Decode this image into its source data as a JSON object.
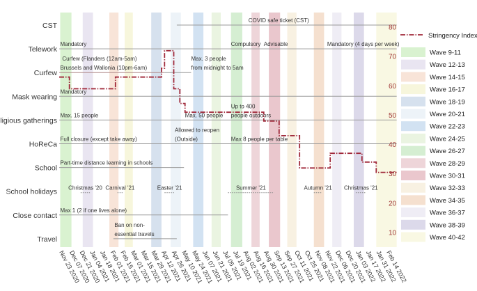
{
  "chart_data": {
    "type": "line",
    "title": "",
    "x_ticks": [
      "Nov 23 2020",
      "Dec 07 2020",
      "Dec 21 2020",
      "Jan 04 2021",
      "Jan 18 2021",
      "Feb 01 2021",
      "Feb 15 2021",
      "Mar 01 2021",
      "Mar 15 2021",
      "Mar 29 2021",
      "Apr 12 2021",
      "Apr 26 2021",
      "May 10 2021",
      "May 24 2021",
      "Jun 07 2021",
      "Jun 21 2021",
      "Jul 05 2021",
      "Jul 19 2021",
      "Aug 02 2021",
      "Aug 16 2021",
      "Aug 30 2021",
      "Sep 13 2021",
      "Sep 27 2021",
      "Oct 11 2021",
      "Oct 25 2021",
      "Nov 08 2021",
      "Nov 22 2021",
      "Dec 06 2021",
      "Dec 20 2021",
      "Jan 03 2022",
      "Jan 17 2022",
      "Jan 31 2022",
      "Feb 14 2022"
    ],
    "categories": [
      "CST",
      "Telework",
      "Curfew",
      "Mask wearing",
      "Religious gatherings",
      "HoReCa",
      "School",
      "School holidays",
      "Close contact",
      "Travel"
    ],
    "y_right": {
      "label": "",
      "ylim": [
        5,
        85
      ],
      "ticks": [
        10,
        20,
        30,
        40,
        50,
        60,
        70,
        80
      ]
    },
    "series": [
      {
        "name": "Stringency Index",
        "color": "#a0293a",
        "points": [
          [
            0,
            63
          ],
          [
            1,
            63
          ],
          [
            1,
            59
          ],
          [
            5.5,
            59
          ],
          [
            5.5,
            63
          ],
          [
            10,
            63
          ],
          [
            10,
            66
          ],
          [
            10.3,
            66
          ],
          [
            10.3,
            72
          ],
          [
            11.2,
            72
          ],
          [
            11.2,
            59
          ],
          [
            11.8,
            59
          ],
          [
            11.8,
            54
          ],
          [
            12.3,
            54
          ],
          [
            12.3,
            51
          ],
          [
            20,
            51
          ],
          [
            20,
            48
          ],
          [
            21.5,
            48
          ],
          [
            21.5,
            43
          ],
          [
            23.5,
            43
          ],
          [
            23.5,
            32
          ],
          [
            26.5,
            32
          ],
          [
            26.5,
            37
          ],
          [
            29.6,
            37
          ],
          [
            29.6,
            34
          ],
          [
            31,
            34
          ],
          [
            31,
            30.5
          ],
          [
            33,
            30.5
          ]
        ]
      }
    ],
    "waves": [
      {
        "label": "Wave 9-11",
        "start": 0.1,
        "end": 1.2,
        "color": "#d9f2d0"
      },
      {
        "label": "Wave 12-13",
        "start": 2.3,
        "end": 3.3,
        "color": "#e9e5f1"
      },
      {
        "label": "Wave 14-15",
        "start": 4.9,
        "end": 5.8,
        "color": "#f8e4d8"
      },
      {
        "label": "Wave 16-17",
        "start": 6.4,
        "end": 7.2,
        "color": "#f7f6dc"
      },
      {
        "label": "Wave 18-19",
        "start": 9.0,
        "end": 10.0,
        "color": "#d6e1ee"
      },
      {
        "label": "Wave 20-21",
        "start": 10.9,
        "end": 11.9,
        "color": "#edf3f8"
      },
      {
        "label": "Wave 22-23",
        "start": 13.1,
        "end": 14.1,
        "color": "#d2e2f2"
      },
      {
        "label": "Wave 24-25",
        "start": 14.9,
        "end": 15.8,
        "color": "#eaf4e1"
      },
      {
        "label": "Wave 26-27",
        "start": 16.8,
        "end": 17.9,
        "color": "#d5eed2"
      },
      {
        "label": "Wave 28-29",
        "start": 18.8,
        "end": 19.6,
        "color": "#eed5d9"
      },
      {
        "label": "Wave 30-31",
        "start": 20.5,
        "end": 21.6,
        "color": "#eac7cd"
      },
      {
        "label": "Wave 32-33",
        "start": 22.3,
        "end": 23.2,
        "color": "#f8f1e2"
      },
      {
        "label": "Wave 34-35",
        "start": 24.9,
        "end": 25.9,
        "color": "#f5e0cf"
      },
      {
        "label": "Wave 36-37",
        "start": 26.7,
        "end": 27.6,
        "color": "#efedf5"
      },
      {
        "label": "Wave 38-39",
        "start": 28.8,
        "end": 29.8,
        "color": "#dcd9ea"
      },
      {
        "label": "Wave 40-42",
        "start": 31.0,
        "end": 33.0,
        "color": "#f9f8e3"
      }
    ],
    "measures": [
      {
        "row": "CST",
        "start": 11.5,
        "end": 33,
        "color": "#999999"
      },
      {
        "row": "Telework",
        "start": 0,
        "end": 33,
        "color": "#999999"
      },
      {
        "row": "Curfew",
        "start": 0,
        "end": 10.3,
        "color": "#b08a8a"
      },
      {
        "row": "Curfew",
        "start": 10.3,
        "end": 12.9,
        "color": "#999999"
      },
      {
        "row": "Mask wearing",
        "start": 0,
        "end": 33,
        "color": "#999999"
      },
      {
        "row": "Religious gatherings",
        "start": 0,
        "end": 33,
        "color": "#999999"
      },
      {
        "row": "HoReCa",
        "start": 0,
        "end": 33,
        "color": "#999999"
      },
      {
        "row": "School",
        "start": 0,
        "end": 12.2,
        "color": "#999999"
      },
      {
        "row": "Close contact",
        "start": 0,
        "end": 16.5,
        "color": "#999999"
      },
      {
        "row": "Travel",
        "start": 5.3,
        "end": 11.5,
        "color": "#999999"
      }
    ],
    "holidays": [
      {
        "label": "Christmas '20",
        "start": 2.1,
        "end": 3.0
      },
      {
        "label": "Carnival '21",
        "start": 5.7,
        "end": 6.2
      },
      {
        "label": "Easter '21",
        "start": 10.3,
        "end": 11.3
      },
      {
        "label": "Summer '21",
        "start": 16.5,
        "end": 21.0
      },
      {
        "label": "Autumn '21",
        "start": 24.9,
        "end": 25.7
      },
      {
        "label": "Christmas '21",
        "start": 29.0,
        "end": 30.0
      }
    ],
    "annotations": [
      {
        "text": "COVID safe ticket (CST)",
        "x": 18.5,
        "row": "CST",
        "dy": -4
      },
      {
        "text": "Mandatory",
        "x": 0.1,
        "row": "Telework",
        "dy": -4
      },
      {
        "text": "Compulsory",
        "x": 16.8,
        "row": "Telework",
        "dy": -4
      },
      {
        "text": "Advisable",
        "x": 20.0,
        "row": "Telework",
        "dy": -4
      },
      {
        "text": "Mandatory (4 days per week)",
        "x": 26.2,
        "row": "Telework",
        "dy": -4
      },
      {
        "text": "Curfew (Flanders (12am-5am)",
        "x": 0.3,
        "row": "Curfew",
        "dy": -17
      },
      {
        "text": "Brussels and Wallonia (10pm-6am)",
        "x": 0.1,
        "row": "Curfew",
        "dy": -4
      },
      {
        "text": "Max. 3 people",
        "x": 12.9,
        "row": "Curfew",
        "dy": -17
      },
      {
        "text": "from midnight to 5am",
        "x": 12.9,
        "row": "Curfew",
        "dy": -4
      },
      {
        "text": "Mandatory",
        "x": 0.1,
        "row": "Mask wearing",
        "dy": -4
      },
      {
        "text": "Max. 15 people",
        "x": 0.1,
        "row": "Religious gatherings",
        "dy": -4
      },
      {
        "text": "Up to 400",
        "x": 16.8,
        "row": "Religious gatherings",
        "dy": -17
      },
      {
        "text": "Max. 50 people",
        "x": 12.3,
        "row": "Religious gatherings",
        "dy": -4
      },
      {
        "text": "people outdoors",
        "x": 16.8,
        "row": "Religious gatherings",
        "dy": -4
      },
      {
        "text": "Allowed to reopen",
        "x": 11.3,
        "row": "HoReCa",
        "dy": -17
      },
      {
        "text": "Full closure (except take away)",
        "x": 0.1,
        "row": "HoReCa",
        "dy": -4
      },
      {
        "text": "(Outside)",
        "x": 11.3,
        "row": "HoReCa",
        "dy": -4
      },
      {
        "text": "Max 8 people per table",
        "x": 16.8,
        "row": "HoReCa",
        "dy": -4
      },
      {
        "text": "Part-time distance learning in schools",
        "x": 0.1,
        "row": "School",
        "dy": -4
      },
      {
        "text": "Max 1 (2 if one lives alone)",
        "x": 0.1,
        "row": "Close contact",
        "dy": -4
      },
      {
        "text": "Ban on non-",
        "x": 5.4,
        "row": "Travel",
        "dy": -17
      },
      {
        "text": "essential travels",
        "x": 5.4,
        "row": "Travel",
        "dy": -4
      }
    ],
    "legend": {
      "position": "right",
      "line_label": "Stringency Index"
    }
  }
}
